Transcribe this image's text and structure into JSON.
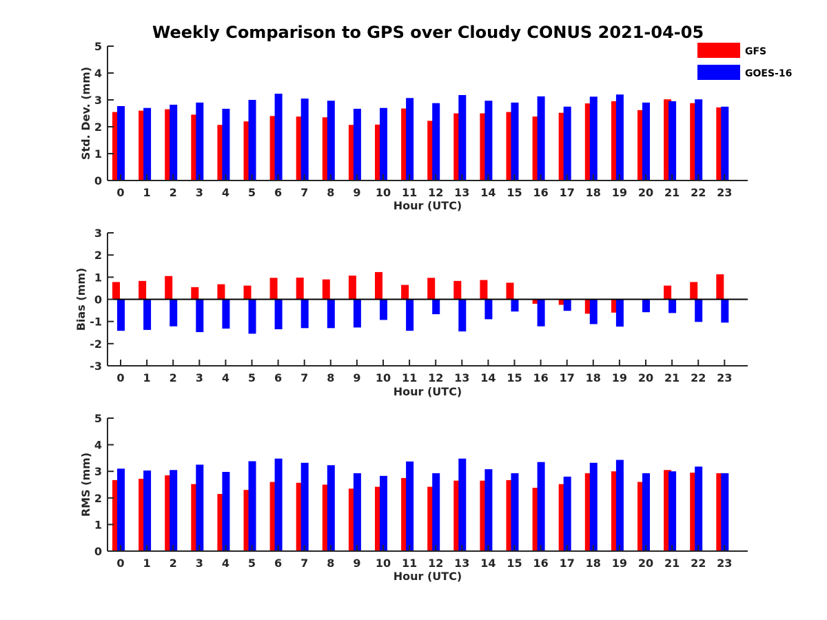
{
  "title": "Weekly Comparison to GPS over Cloudy CONUS 2021-04-05",
  "colors": {
    "GFS": "#ff0000",
    "GOES-16": "#0000ff",
    "axis": "#262626"
  },
  "legend": {
    "placement": "top-right",
    "entries": [
      "GFS",
      "GOES-16"
    ]
  },
  "chart_data": [
    {
      "type": "bar",
      "ylabel": "Std. Dev. (mm)",
      "xlabel": "Hour (UTC)",
      "ylim": [
        0,
        5
      ],
      "yticks": [
        0,
        1,
        2,
        3,
        4,
        5
      ],
      "categories": [
        "0",
        "1",
        "2",
        "3",
        "4",
        "5",
        "6",
        "7",
        "8",
        "9",
        "10",
        "11",
        "12",
        "13",
        "14",
        "15",
        "16",
        "17",
        "18",
        "19",
        "20",
        "21",
        "22",
        "23"
      ],
      "series": [
        {
          "name": "GFS",
          "values": [
            2.55,
            2.6,
            2.65,
            2.45,
            2.07,
            2.2,
            2.4,
            2.38,
            2.35,
            2.07,
            2.08,
            2.68,
            2.22,
            2.5,
            2.5,
            2.55,
            2.38,
            2.52,
            2.87,
            2.95,
            2.62,
            3.02,
            2.88,
            2.72
          ]
        },
        {
          "name": "GOES-16",
          "values": [
            2.77,
            2.7,
            2.82,
            2.9,
            2.67,
            3.0,
            3.23,
            3.05,
            2.97,
            2.67,
            2.7,
            3.07,
            2.88,
            3.18,
            2.97,
            2.9,
            3.13,
            2.75,
            3.12,
            3.2,
            2.9,
            2.95,
            3.02,
            2.75
          ]
        }
      ]
    },
    {
      "type": "bar",
      "ylabel": "Bias (mm)",
      "xlabel": "Hour (UTC)",
      "ylim": [
        -3,
        3
      ],
      "yticks": [
        -3,
        -2,
        -1,
        0,
        1,
        2,
        3
      ],
      "categories": [
        "0",
        "1",
        "2",
        "3",
        "4",
        "5",
        "6",
        "7",
        "8",
        "9",
        "10",
        "11",
        "12",
        "13",
        "14",
        "15",
        "16",
        "17",
        "18",
        "19",
        "20",
        "21",
        "22",
        "23"
      ],
      "series": [
        {
          "name": "GFS",
          "values": [
            0.78,
            0.83,
            1.05,
            0.55,
            0.68,
            0.62,
            0.97,
            0.98,
            0.9,
            1.07,
            1.23,
            0.65,
            0.97,
            0.83,
            0.87,
            0.75,
            -0.2,
            -0.25,
            -0.65,
            -0.6,
            0.0,
            0.62,
            0.78,
            1.13
          ]
        },
        {
          "name": "GOES-16",
          "values": [
            -1.42,
            -1.38,
            -1.22,
            -1.48,
            -1.32,
            -1.55,
            -1.35,
            -1.3,
            -1.3,
            -1.27,
            -0.93,
            -1.42,
            -0.67,
            -1.45,
            -0.9,
            -0.55,
            -1.22,
            -0.52,
            -1.12,
            -1.23,
            -0.58,
            -0.62,
            -1.02,
            -1.05
          ]
        }
      ]
    },
    {
      "type": "bar",
      "ylabel": "RMS (mm)",
      "xlabel": "Hour (UTC)",
      "ylim": [
        0,
        5
      ],
      "yticks": [
        0,
        1,
        2,
        3,
        4,
        5
      ],
      "categories": [
        "0",
        "1",
        "2",
        "3",
        "4",
        "5",
        "6",
        "7",
        "8",
        "9",
        "10",
        "11",
        "12",
        "13",
        "14",
        "15",
        "16",
        "17",
        "18",
        "19",
        "20",
        "21",
        "22",
        "23"
      ],
      "series": [
        {
          "name": "GFS",
          "values": [
            2.67,
            2.72,
            2.85,
            2.52,
            2.15,
            2.3,
            2.6,
            2.57,
            2.5,
            2.35,
            2.42,
            2.75,
            2.42,
            2.65,
            2.65,
            2.67,
            2.38,
            2.52,
            2.93,
            3.0,
            2.6,
            3.05,
            2.95,
            2.93
          ]
        },
        {
          "name": "GOES-16",
          "values": [
            3.1,
            3.03,
            3.05,
            3.25,
            2.98,
            3.38,
            3.48,
            3.32,
            3.23,
            2.93,
            2.83,
            3.37,
            2.93,
            3.48,
            3.08,
            2.93,
            3.35,
            2.8,
            3.32,
            3.43,
            2.93,
            3.0,
            3.18,
            2.93
          ]
        }
      ]
    }
  ]
}
